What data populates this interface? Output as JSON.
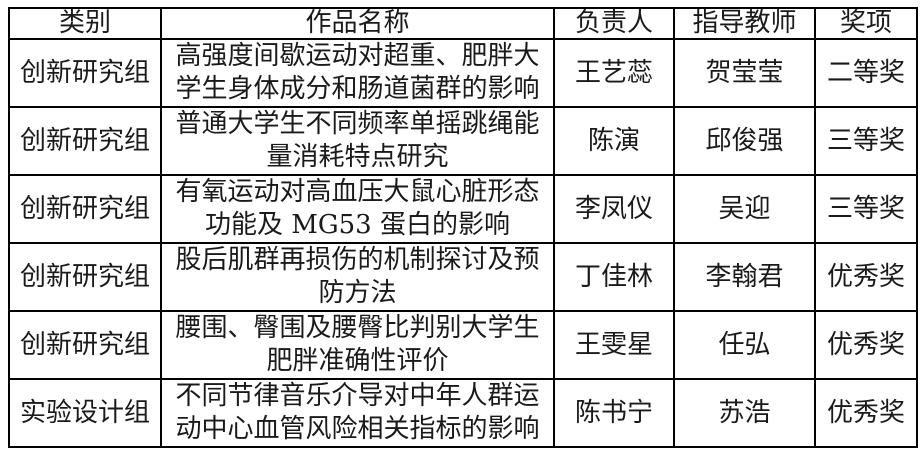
{
  "page": {
    "background_color": "#ffffff",
    "text_color": "#1a1a1a",
    "border_color": "#000000"
  },
  "table": {
    "headers": [
      "类别",
      "作品名称",
      "负责人",
      "指导教师",
      "奖项"
    ],
    "rows": [
      {
        "category": "创新研究组",
        "title": "高强度间歇运动对超重、肥胖大学生身体成分和肠道菌群的影响",
        "leader": "王艺蕊",
        "advisor": "贺莹莹",
        "award": "二等奖"
      },
      {
        "category": "创新研究组",
        "title": "普通大学生不同频率单摇跳绳能量消耗特点研究",
        "leader": "陈演",
        "advisor": "邱俊强",
        "award": "三等奖"
      },
      {
        "category": "创新研究组",
        "title": "有氧运动对高血压大鼠心脏形态功能及 MG53 蛋白的影响",
        "leader": "李凤仪",
        "advisor": "吴迎",
        "award": "三等奖"
      },
      {
        "category": "创新研究组",
        "title": "股后肌群再损伤的机制探讨及预防方法",
        "leader": "丁佳林",
        "advisor": "李翰君",
        "award": "优秀奖"
      },
      {
        "category": "创新研究组",
        "title": "腰围、臀围及腰臀比判别大学生肥胖准确性评价",
        "leader": "王雯星",
        "advisor": "任弘",
        "award": "优秀奖"
      },
      {
        "category": "实验设计组",
        "title": "不同节律音乐介导对中年人群运动中心血管风险相关指标的影响",
        "leader": "陈书宁",
        "advisor": "苏浩",
        "award": "优秀奖"
      }
    ]
  }
}
